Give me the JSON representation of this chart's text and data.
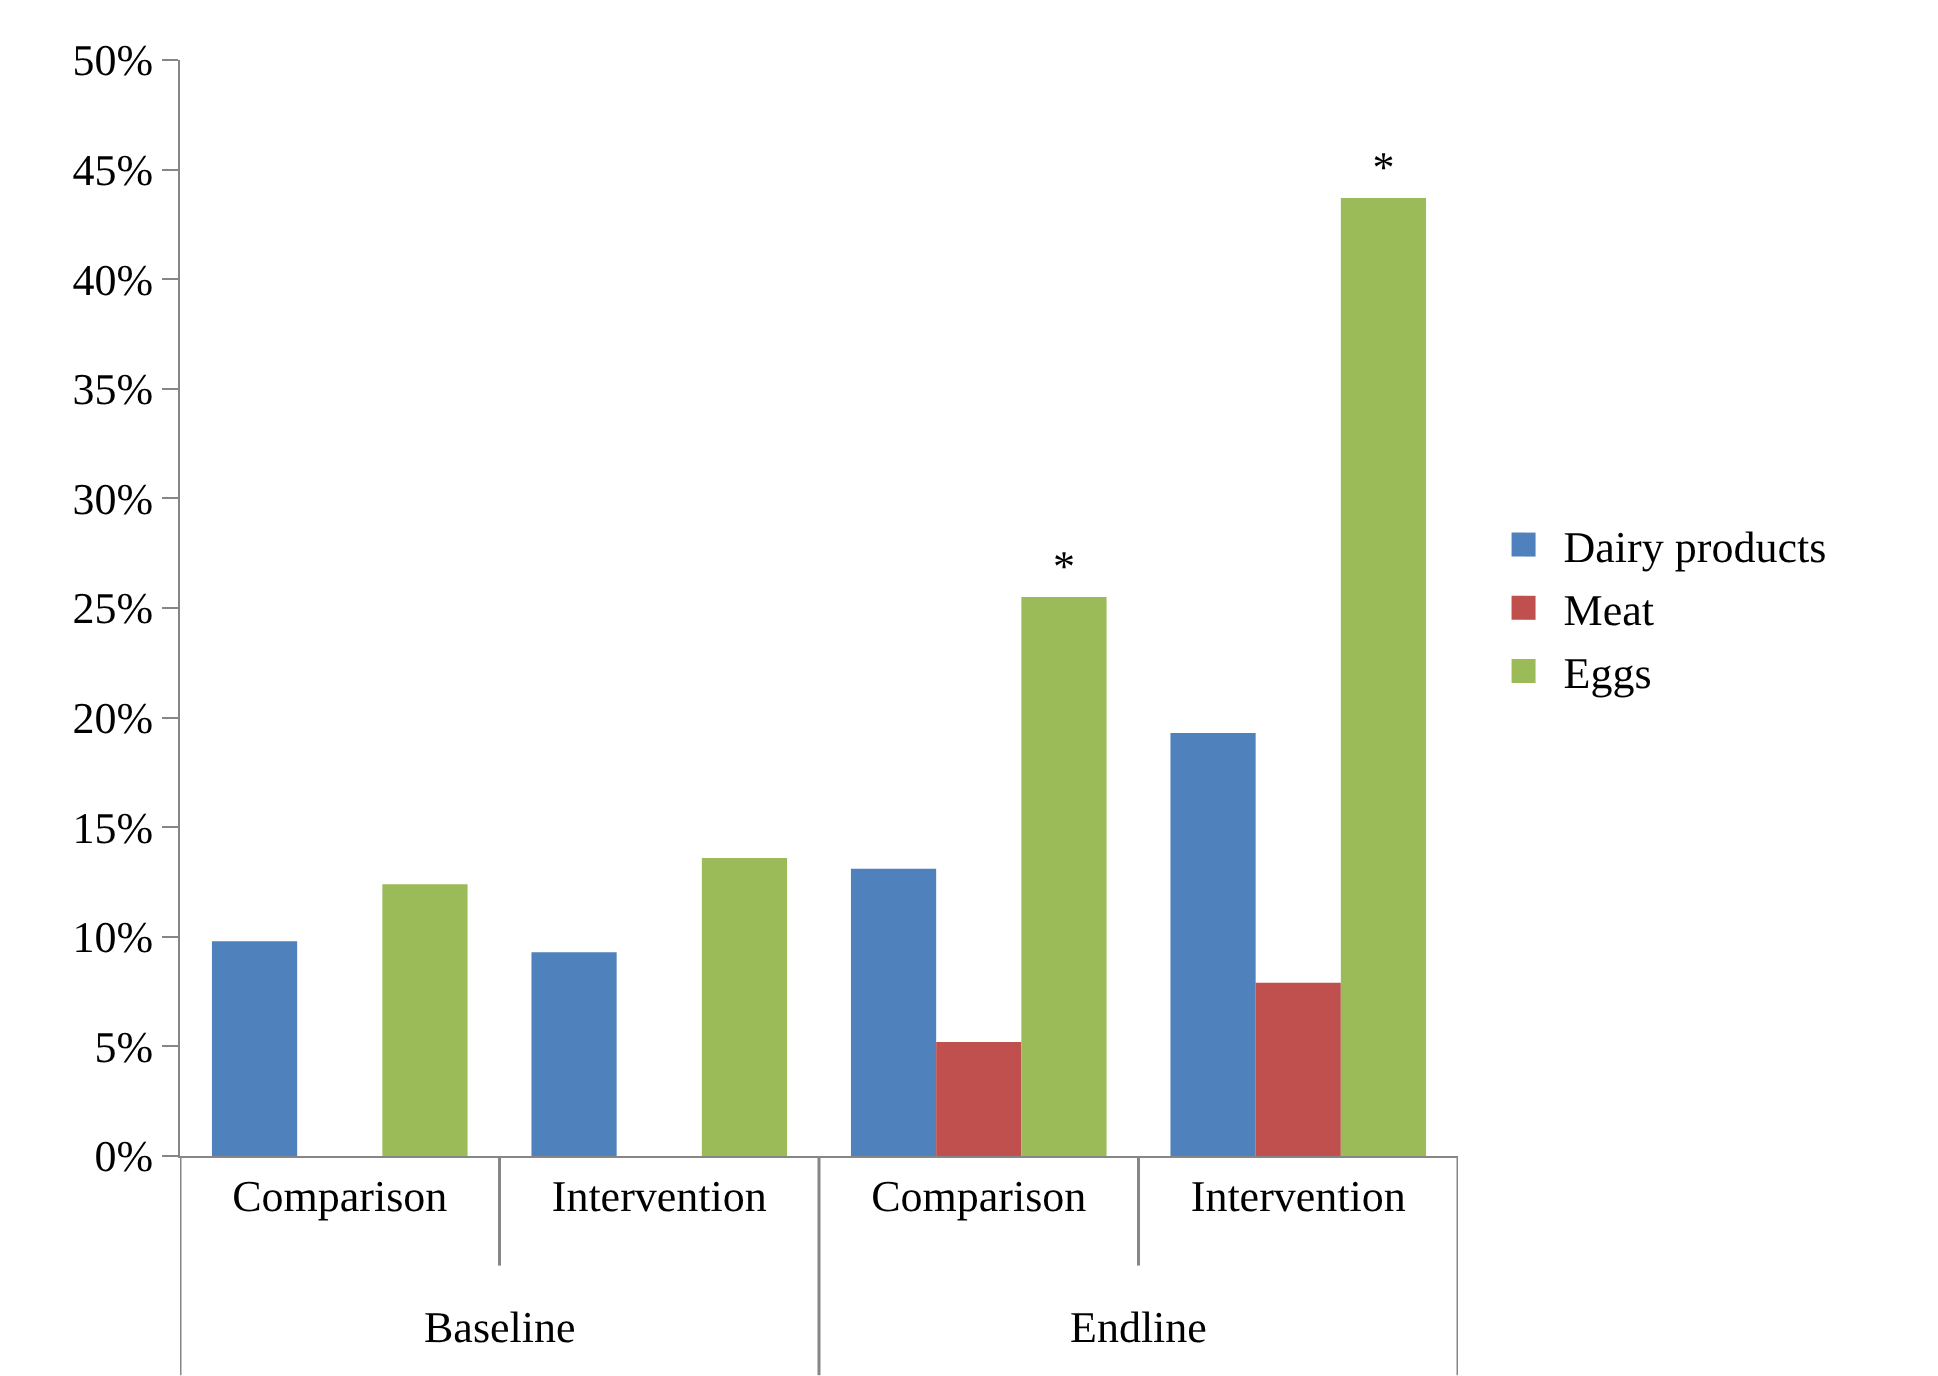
{
  "chart_data": {
    "type": "bar",
    "categories": [
      "Comparison",
      "Intervention",
      "Comparison",
      "Intervention"
    ],
    "annotations": [
      "Baseline",
      "Endline"
    ],
    "series": [
      {
        "name": "Dairy products",
        "color": "#4f81bd",
        "values": [
          9.8,
          9.3,
          13.1,
          19.3
        ]
      },
      {
        "name": "Meat",
        "color": "#c0504d",
        "values": [
          null,
          null,
          5.2,
          7.9
        ]
      },
      {
        "name": "Eggs",
        "color": "#9bbb59",
        "values": [
          12.4,
          13.6,
          25.5,
          43.7
        ],
        "value_labels": [
          null,
          null,
          "*",
          "*"
        ]
      }
    ],
    "ylim": [
      0,
      50
    ],
    "yticks": [
      {
        "value": 0,
        "label": "0%"
      },
      {
        "value": 5,
        "label": "5%"
      },
      {
        "value": 10,
        "label": "10%"
      },
      {
        "value": 15,
        "label": "15%"
      },
      {
        "value": 20,
        "label": "20%"
      },
      {
        "value": 25,
        "label": "25%"
      },
      {
        "value": 30,
        "label": "30%"
      },
      {
        "value": 35,
        "label": "35%"
      },
      {
        "value": 40,
        "label": "40%"
      },
      {
        "value": 45,
        "label": "45%"
      },
      {
        "value": 50,
        "label": "50%"
      }
    ],
    "legend": "right"
  }
}
